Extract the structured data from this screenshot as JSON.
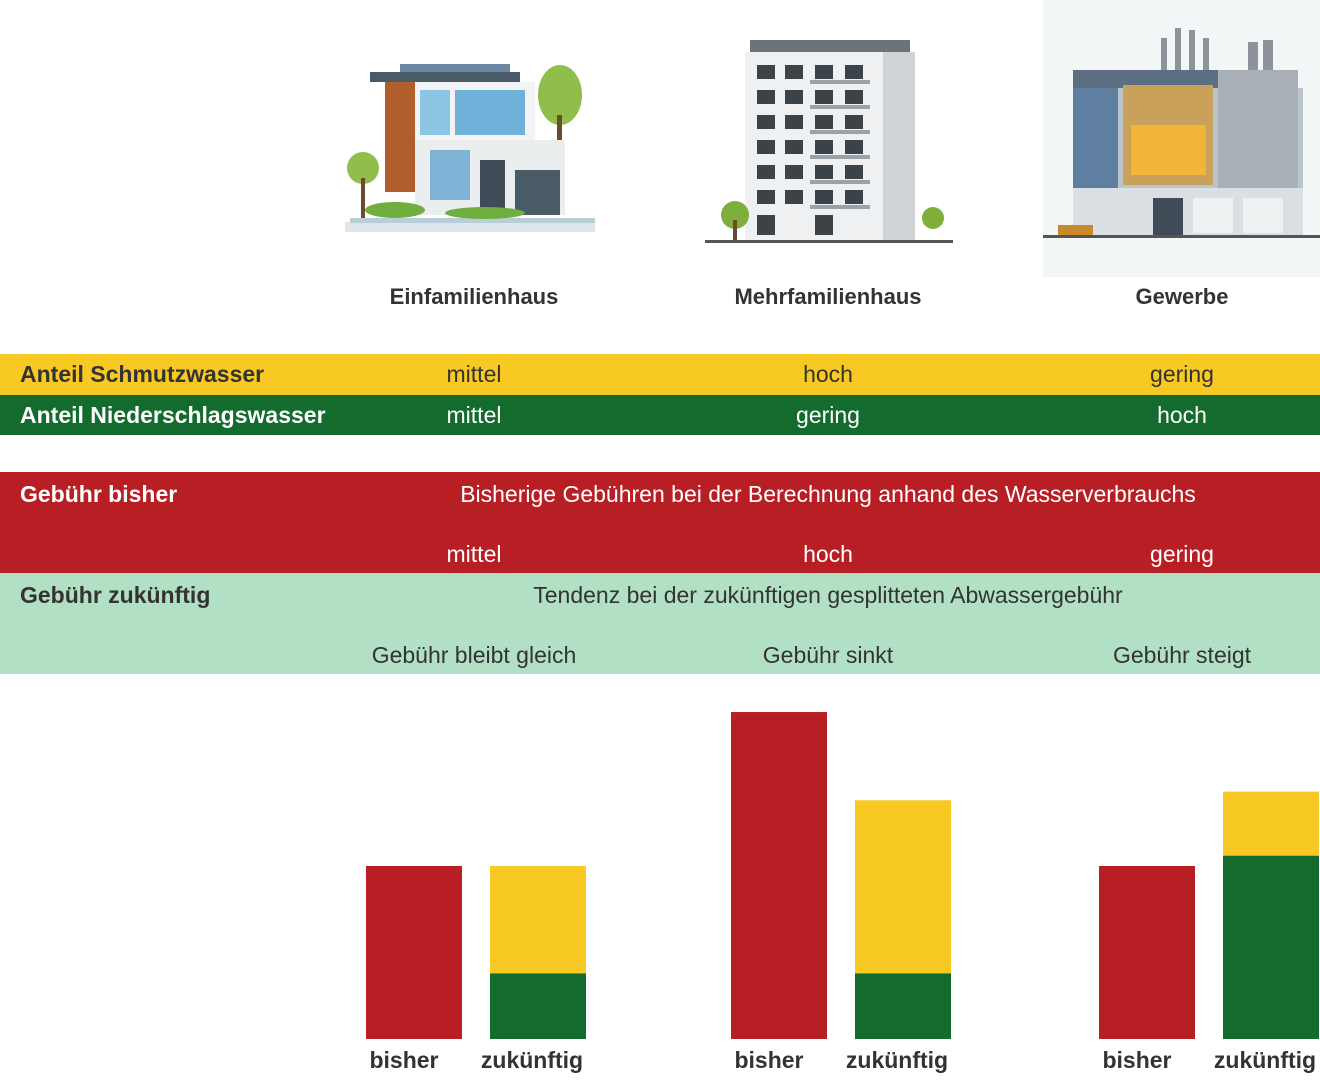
{
  "columns": [
    {
      "title": "Einfamilienhaus",
      "illustration": "single-family-house-icon"
    },
    {
      "title": "Mehrfamilienhaus",
      "illustration": "apartment-building-icon"
    },
    {
      "title": "Gewerbe",
      "illustration": "commercial-building-icon"
    }
  ],
  "rows": {
    "schmutzwasser": {
      "label": "Anteil Schmutzwasser",
      "values": [
        "mittel",
        "hoch",
        "gering"
      ],
      "color": "#F7C922"
    },
    "niederschlag": {
      "label": "Anteil Niederschlagswasser",
      "values": [
        "mittel",
        "gering",
        "hoch"
      ],
      "color": "#146B2E"
    },
    "gebuehr_bisher": {
      "label": "Gebühr bisher",
      "subtitle": "Bisherige Gebühren bei der Berechnung anhand des Wasserverbrauchs",
      "values": [
        "mittel",
        "hoch",
        "gering"
      ],
      "color": "#B81F24"
    },
    "gebuehr_zukuenftig": {
      "label": "Gebühr zukünftig",
      "subtitle": "Tendenz bei der zukünftigen gesplitteten Abwassergebühr",
      "values": [
        "Gebühr bleibt gleich",
        "Gebühr sinkt",
        "Gebühr steigt"
      ],
      "color": "#B2E0C4"
    }
  },
  "chart_data": {
    "type": "bar",
    "categories": [
      "Einfamilienhaus",
      "Mehrfamilienhaus",
      "Gewerbe"
    ],
    "bar_labels": [
      "bisher",
      "zukünftig"
    ],
    "series": [
      {
        "values": [
          1.0,
          1.89,
          1.0
        ],
        "color": "#B81F24"
      },
      {
        "values": [
          0.38,
          0.38,
          1.06
        ],
        "color": "#146B2E"
      },
      {
        "values": [
          0.62,
          1.0,
          0.37
        ],
        "color": "#F7C922"
      }
    ],
    "stacked_series": [
      "zukünftig"
    ],
    "grid": false
  }
}
